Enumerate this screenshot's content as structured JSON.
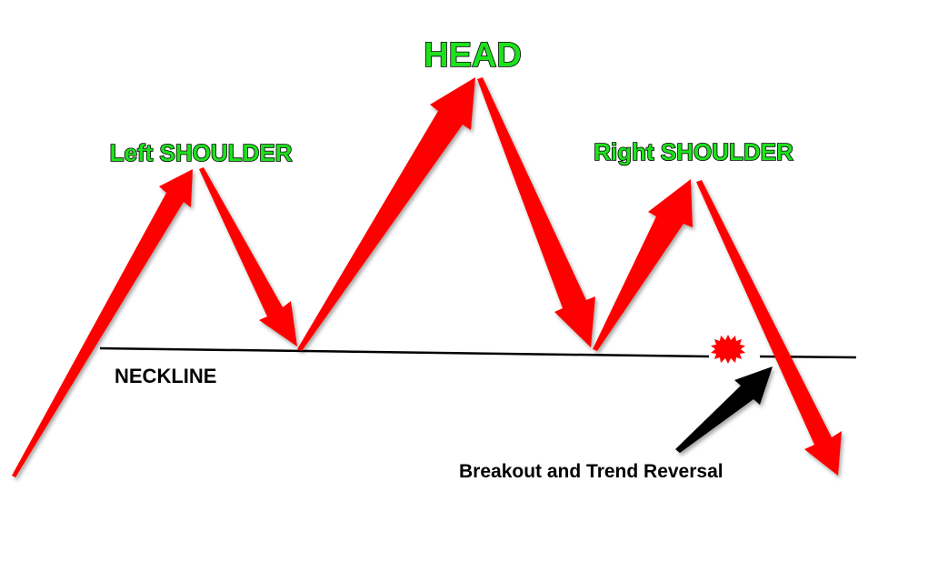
{
  "labels": {
    "head": "HEAD",
    "left_shoulder": "Left SHOULDER",
    "right_shoulder": "Right SHOULDER",
    "neckline": "NECKLINE",
    "breakout": "Breakout and Trend Reversal"
  },
  "colors": {
    "trend_arrow": "#ff0000",
    "label_text": "#1fe01f",
    "label_outline": "#000000",
    "neckline": "#000000",
    "breakout_arrow": "#000000",
    "breakout_marker": "#ff0000"
  }
}
